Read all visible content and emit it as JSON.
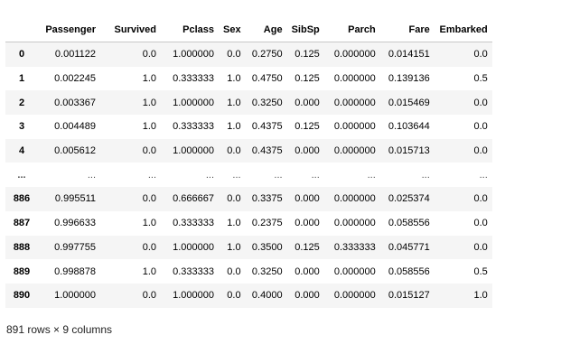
{
  "dataframe": {
    "index_header": "",
    "columns": [
      "Passenger",
      "Survived",
      "Pclass",
      "Sex",
      "Age",
      "SibSp",
      "Parch",
      "Fare",
      "Embarked"
    ],
    "rows": [
      {
        "index": "0",
        "cells": [
          "0.001122",
          "0.0",
          "1.000000",
          "0.0",
          "0.2750",
          "0.125",
          "0.000000",
          "0.014151",
          "0.0"
        ]
      },
      {
        "index": "1",
        "cells": [
          "0.002245",
          "1.0",
          "0.333333",
          "1.0",
          "0.4750",
          "0.125",
          "0.000000",
          "0.139136",
          "0.5"
        ]
      },
      {
        "index": "2",
        "cells": [
          "0.003367",
          "1.0",
          "1.000000",
          "1.0",
          "0.3250",
          "0.000",
          "0.000000",
          "0.015469",
          "0.0"
        ]
      },
      {
        "index": "3",
        "cells": [
          "0.004489",
          "1.0",
          "0.333333",
          "1.0",
          "0.4375",
          "0.125",
          "0.000000",
          "0.103644",
          "0.0"
        ]
      },
      {
        "index": "4",
        "cells": [
          "0.005612",
          "0.0",
          "1.000000",
          "0.0",
          "0.4375",
          "0.000",
          "0.000000",
          "0.015713",
          "0.0"
        ]
      },
      {
        "index": "...",
        "cells": [
          "...",
          "...",
          "...",
          "...",
          "...",
          "...",
          "...",
          "...",
          "..."
        ]
      },
      {
        "index": "886",
        "cells": [
          "0.995511",
          "0.0",
          "0.666667",
          "0.0",
          "0.3375",
          "0.000",
          "0.000000",
          "0.025374",
          "0.0"
        ]
      },
      {
        "index": "887",
        "cells": [
          "0.996633",
          "1.0",
          "0.333333",
          "1.0",
          "0.2375",
          "0.000",
          "0.000000",
          "0.058556",
          "0.0"
        ]
      },
      {
        "index": "888",
        "cells": [
          "0.997755",
          "0.0",
          "1.000000",
          "1.0",
          "0.3500",
          "0.125",
          "0.333333",
          "0.045771",
          "0.0"
        ]
      },
      {
        "index": "889",
        "cells": [
          "0.998878",
          "1.0",
          "0.333333",
          "0.0",
          "0.3250",
          "0.000",
          "0.000000",
          "0.058556",
          "0.5"
        ]
      },
      {
        "index": "890",
        "cells": [
          "1.000000",
          "0.0",
          "1.000000",
          "0.0",
          "0.4000",
          "0.000",
          "0.000000",
          "0.015127",
          "1.0"
        ]
      }
    ]
  },
  "summary": "891 rows × 9 columns"
}
